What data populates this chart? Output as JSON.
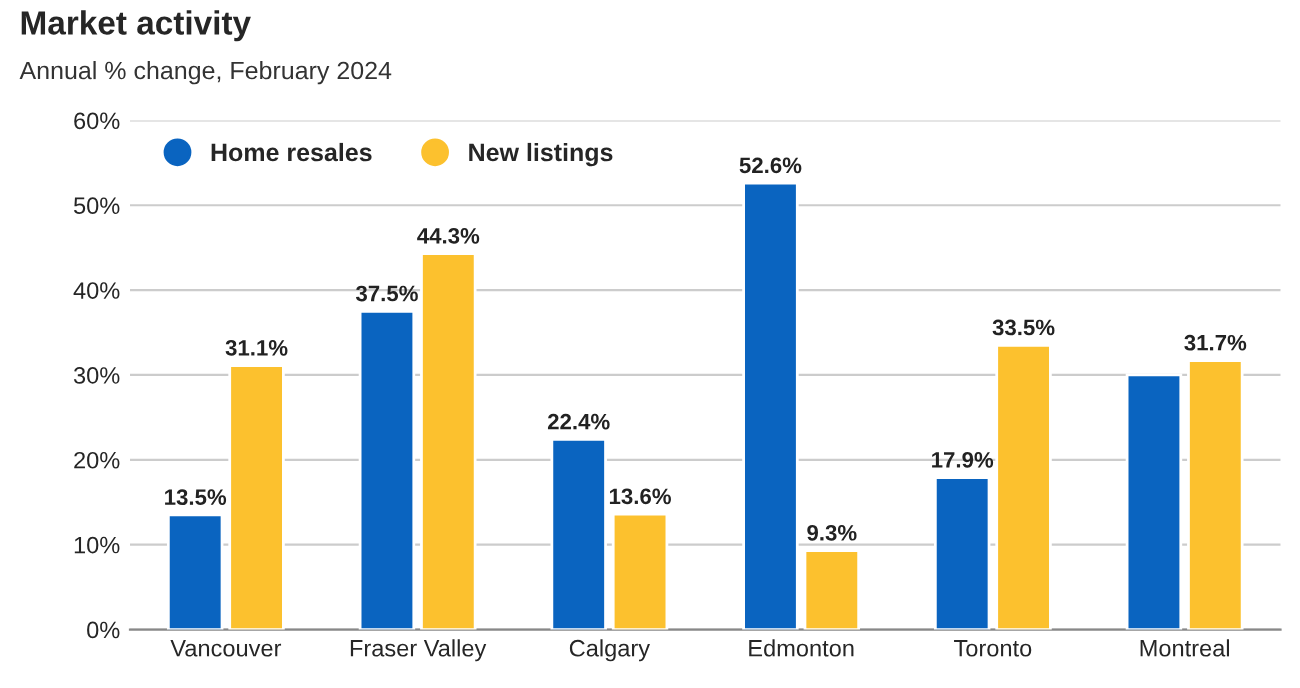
{
  "chart_data": {
    "type": "bar",
    "title": "Market activity",
    "subtitle": "Annual % change, February 2024",
    "categories": [
      "Vancouver",
      "Fraser Valley",
      "Calgary",
      "Edmonton",
      "Toronto",
      "Montreal"
    ],
    "series": [
      {
        "name": "Home resales",
        "color": "#0a64c0",
        "values": [
          13.5,
          37.5,
          22.4,
          52.6,
          17.9,
          30.0
        ],
        "value_labels": [
          "13.5%",
          "37.5%",
          "22.4%",
          "52.6%",
          "17.9%",
          null
        ]
      },
      {
        "name": "New listings",
        "color": "#fcc12e",
        "values": [
          31.1,
          44.3,
          13.6,
          9.3,
          33.5,
          31.7
        ],
        "value_labels": [
          "31.1%",
          "44.3%",
          "13.6%",
          "9.3%",
          "33.5%",
          "31.7%"
        ]
      }
    ],
    "ylim": [
      0,
      60
    ],
    "yticks": [
      {
        "value": 0,
        "label": "0%"
      },
      {
        "value": 10,
        "label": "10%"
      },
      {
        "value": 20,
        "label": "20%"
      },
      {
        "value": 30,
        "label": "30%"
      },
      {
        "value": 40,
        "label": "40%"
      },
      {
        "value": 50,
        "label": "50%"
      },
      {
        "value": 60,
        "label": "60%"
      }
    ],
    "grid": "y",
    "legend": "top left"
  }
}
